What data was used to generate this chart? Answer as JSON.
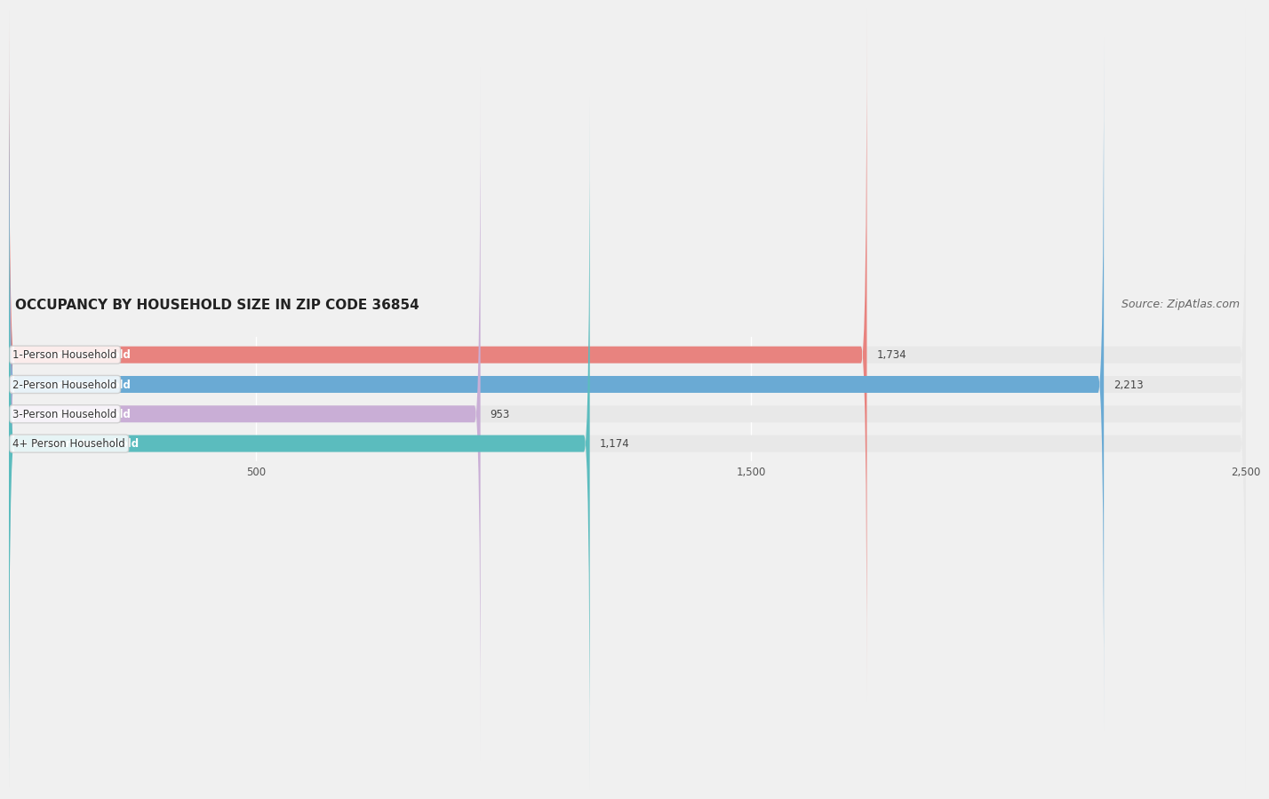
{
  "title": "OCCUPANCY BY HOUSEHOLD SIZE IN ZIP CODE 36854",
  "source": "Source: ZipAtlas.com",
  "categories": [
    "1-Person Household",
    "2-Person Household",
    "3-Person Household",
    "4+ Person Household"
  ],
  "values": [
    1734,
    2213,
    953,
    1174
  ],
  "bar_colors": [
    "#e8837f",
    "#6aaad4",
    "#c9aed6",
    "#5bbcbe"
  ],
  "bar_labels": [
    "1,734",
    "2,213",
    "953",
    "1,174"
  ],
  "xlim": [
    0,
    2500
  ],
  "xticks": [
    500,
    1500,
    2500
  ],
  "background_color": "#f0f0f0",
  "bar_bg_color": "#e8e8e8",
  "title_fontsize": 11,
  "source_fontsize": 9,
  "label_fontsize": 8.5,
  "bar_height": 0.55,
  "figsize": [
    14.06,
    2.33
  ]
}
